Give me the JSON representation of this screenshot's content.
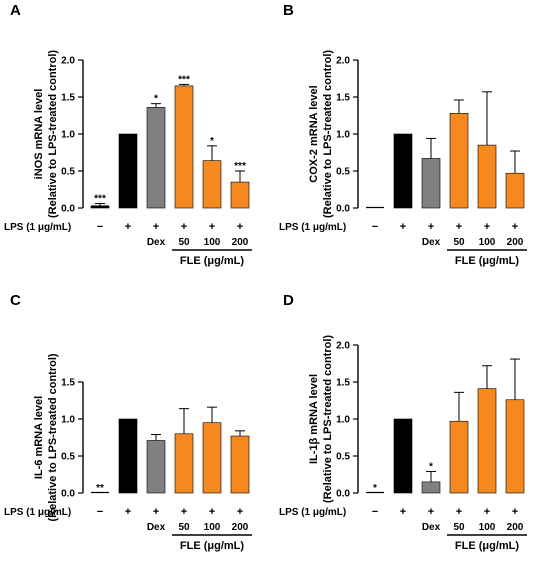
{
  "colors": {
    "control": "#000000",
    "dex": "#808080",
    "fle": "#F5891F",
    "axis": "#000000"
  },
  "conditions": {
    "lps_label": "LPS (1 μg/mL)",
    "lps_row": [
      "−",
      "+",
      "+",
      "+",
      "+",
      "+"
    ],
    "treatment_row": [
      "",
      "",
      "Dex",
      "50",
      "100",
      "200"
    ],
    "group_label": "FLE (μg/mL)"
  },
  "chart_data": [
    {
      "panel": "A",
      "type": "bar",
      "ylabel_line1": "iNOS mRNA level",
      "ylabel_line2": "(Relative to LPS-treated control)",
      "ylim": [
        0,
        2.0
      ],
      "yticks": [
        "0.0",
        "0.5",
        "1.0",
        "1.5",
        "2.0"
      ],
      "values": [
        0.03,
        1.0,
        1.36,
        1.65,
        0.64,
        0.35
      ],
      "errors": [
        0.03,
        0,
        0.05,
        0.02,
        0.2,
        0.15
      ],
      "bar_colors": [
        "control",
        "control",
        "dex",
        "fle",
        "fle",
        "fle"
      ],
      "sig": [
        "***",
        "",
        "*",
        "***",
        "*",
        "***"
      ]
    },
    {
      "panel": "B",
      "type": "bar",
      "ylabel_line1": "COX-2 mRNA level",
      "ylabel_line2": "(Relative to LPS-treated control)",
      "ylim": [
        0,
        2.0
      ],
      "yticks": [
        "0.0",
        "0.5",
        "1.0",
        "1.5",
        "2.0"
      ],
      "values": [
        0.0,
        1.0,
        0.67,
        1.28,
        0.85,
        0.47
      ],
      "errors": [
        0,
        0,
        0.27,
        0.18,
        0.72,
        0.3
      ],
      "bar_colors": [
        "control",
        "control",
        "dex",
        "fle",
        "fle",
        "fle"
      ],
      "sig": [
        "",
        "",
        "",
        "",
        "",
        ""
      ]
    },
    {
      "panel": "C",
      "type": "bar",
      "ylabel_line1": "IL-6 mRNA level",
      "ylabel_line2": "(Relative to LPS-treated control)",
      "ylim": [
        0,
        1.5
      ],
      "yticks": [
        "0.0",
        "0.5",
        "1.0",
        "1.5"
      ],
      "values": [
        0.0,
        1.0,
        0.71,
        0.8,
        0.95,
        0.77
      ],
      "errors": [
        0,
        0,
        0.08,
        0.34,
        0.21,
        0.07
      ],
      "bar_colors": [
        "control",
        "control",
        "dex",
        "fle",
        "fle",
        "fle"
      ],
      "sig": [
        "**",
        "",
        "",
        "",
        "",
        ""
      ]
    },
    {
      "panel": "D",
      "type": "bar",
      "ylabel_line1": "IL-1β mRNA level",
      "ylabel_line2": "(Relative to LPS-treated control)",
      "ylim": [
        0,
        2.0
      ],
      "yticks": [
        "0.0",
        "0.5",
        "1.0",
        "1.5",
        "2.0"
      ],
      "values": [
        0.0,
        1.0,
        0.15,
        0.97,
        1.41,
        1.26
      ],
      "errors": [
        0,
        0,
        0.14,
        0.39,
        0.31,
        0.55
      ],
      "bar_colors": [
        "control",
        "control",
        "dex",
        "fle",
        "fle",
        "fle"
      ],
      "sig": [
        "*",
        "",
        "*",
        "",
        "",
        ""
      ]
    }
  ]
}
